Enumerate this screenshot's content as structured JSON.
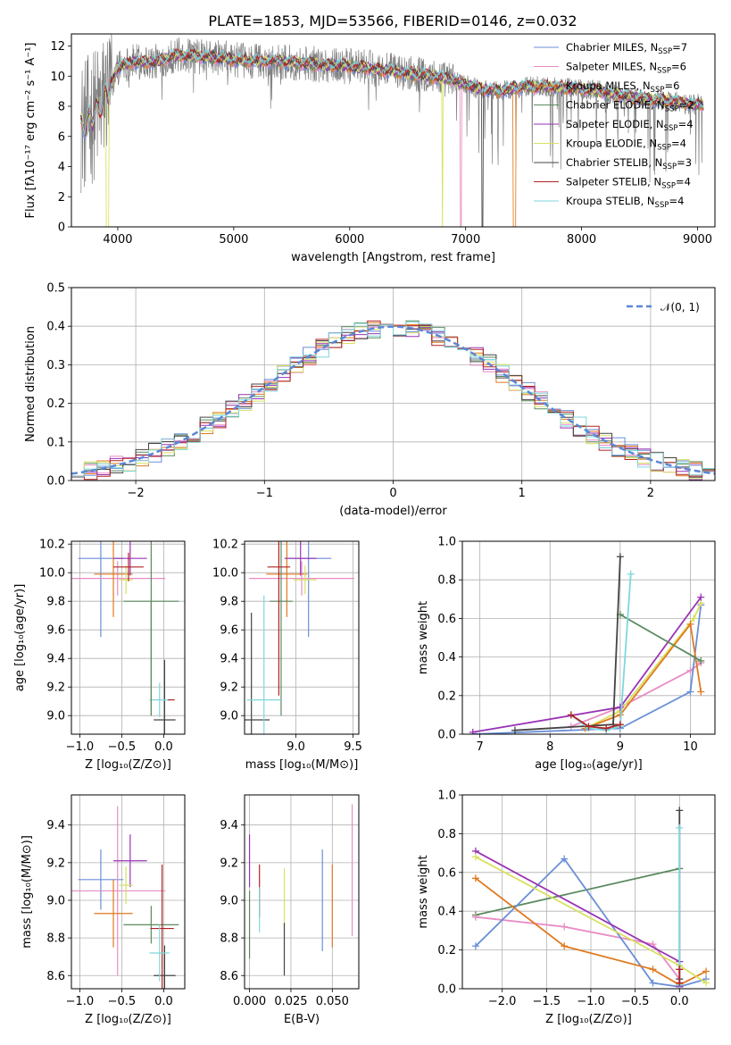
{
  "figure_title": "PLATE=1853, MJD=53566, FIBERID=0146, z=0.032",
  "colors": {
    "chabrier_miles": "#6a8fd8",
    "salpeter_miles": "#e88cc4",
    "kroupa_miles": "#e07a1f",
    "chabrier_elodie": "#5a8a5e",
    "salpeter_elodie": "#9933b5",
    "kroupa_elodie": "#d8e060",
    "chabrier_stelib": "#444444",
    "salpeter_stelib": "#b22222",
    "kroupa_stelib": "#7fd6dc",
    "data": "#7f7f7f",
    "grid": "#b0b0b0",
    "normal": "#5b87d6"
  },
  "chart_data": [
    {
      "id": "spectrum",
      "type": "line",
      "title": "PLATE=1853, MJD=53566, FIBERID=0146, z=0.032",
      "xlabel": "wavelength [Angstrom, rest frame]",
      "ylabel": "Flux [fλ10⁻¹⁷ erg cm⁻² s⁻¹ A⁻¹]",
      "xlim": [
        3600,
        9150
      ],
      "ylim": [
        0,
        12.8
      ],
      "xticks": [
        "4000",
        "5000",
        "6000",
        "7000",
        "8000",
        "9000"
      ],
      "yticks": [
        "0",
        "2",
        "4",
        "6",
        "8",
        "10",
        "12"
      ],
      "grid": false,
      "legend_position": "top-right",
      "legend": [
        {
          "label": "Chabrier MILES, N",
          "sub": "SSP",
          "tail": "=7",
          "color": "#6a8fd8"
        },
        {
          "label": "Salpeter MILES, N",
          "sub": "SSP",
          "tail": "=6",
          "color": "#e88cc4"
        },
        {
          "label": "Kroupa MILES, N",
          "sub": "SSP",
          "tail": "=6",
          "color": "#e07a1f"
        },
        {
          "label": "Chabrier ELODIE, N",
          "sub": "SSP",
          "tail": "=2",
          "color": "#5a8a5e"
        },
        {
          "label": "Salpeter ELODIE, N",
          "sub": "SSP",
          "tail": "=4",
          "color": "#9933b5"
        },
        {
          "label": "Kroupa ELODIE, N",
          "sub": "SSP",
          "tail": "=4",
          "color": "#d8e060"
        },
        {
          "label": "Chabrier STELIB, N",
          "sub": "SSP",
          "tail": "=3",
          "color": "#444444"
        },
        {
          "label": "Salpeter STELIB, N",
          "sub": "SSP",
          "tail": "=4",
          "color": "#b22222"
        },
        {
          "label": "Kroupa STELIB, N",
          "sub": "SSP",
          "tail": "=4",
          "color": "#7fd6dc"
        }
      ],
      "model_continuum": {
        "x": [
          3680,
          3750,
          3850,
          3950,
          4000,
          4100,
          4200,
          4300,
          4400,
          4500,
          4700,
          4900,
          5100,
          5300,
          5500,
          5700,
          5900,
          6100,
          6300,
          6500,
          6700,
          6900,
          7100,
          7300,
          7500,
          7700,
          7900,
          8100,
          8300,
          8500,
          8700,
          8900,
          9050
        ],
        "y": [
          6.6,
          7.0,
          8.0,
          9.5,
          10.6,
          10.9,
          11.0,
          10.9,
          11.1,
          11.4,
          11.3,
          11.2,
          11.0,
          11.0,
          10.9,
          10.8,
          10.7,
          10.6,
          10.4,
          10.2,
          10.0,
          9.7,
          9.2,
          9.0,
          9.3,
          9.3,
          9.2,
          9.1,
          8.8,
          8.5,
          8.4,
          8.2,
          8.1
        ]
      },
      "dropouts": [
        {
          "series": "kroupa_elodie",
          "x": [
            3900,
            3920
          ]
        },
        {
          "series": "kroupa_elodie",
          "x": [
            6795,
            6805
          ]
        },
        {
          "series": "salpeter_miles",
          "x": [
            6955,
            6965
          ]
        },
        {
          "series": "chabrier_stelib",
          "x": [
            7140,
            7150
          ]
        },
        {
          "series": "kroupa_miles",
          "x": [
            7410,
            7430
          ]
        }
      ]
    },
    {
      "id": "residuals",
      "type": "histogram",
      "xlabel": "(data-model)/error",
      "ylabel": "Normed distribution",
      "xlim": [
        -2.5,
        2.5
      ],
      "ylim": [
        0,
        0.5
      ],
      "xticks": [
        "−2",
        "−1",
        "0",
        "1",
        "2"
      ],
      "yticks": [
        "0.0",
        "0.1",
        "0.2",
        "0.3",
        "0.4",
        "0.5"
      ],
      "grid": true,
      "legend_position": "top-right",
      "legend": [
        {
          "label": "𝒩(0, 1)",
          "style": "dashed",
          "color": "#5b87d6"
        }
      ],
      "bin_width": 0.1,
      "bin_start": -2.5
    },
    {
      "id": "age_vs_Z",
      "type": "errorbar",
      "xlabel": "Z [log₁₀(Z/Z⊙)]",
      "ylabel": "age  [log₁₀(age/yr)]",
      "xlim": [
        -1.1,
        0.25
      ],
      "ylim": [
        8.87,
        10.22
      ],
      "xticks": [
        "−1.0",
        "−0.5",
        "0.0"
      ],
      "xtick_values": [
        -1.0,
        -0.5,
        0.0
      ],
      "yticks": [
        "9.0",
        "9.2",
        "9.4",
        "9.6",
        "9.8",
        "10.0",
        "10.2"
      ],
      "ytick_values": [
        9.0,
        9.2,
        9.4,
        9.6,
        9.8,
        10.0,
        10.2
      ],
      "grid": true,
      "points": [
        {
          "series": "chabrier_miles",
          "x": -0.75,
          "y": 10.1,
          "xerr": 0.27,
          "yerr": 0.55
        },
        {
          "series": "salpeter_miles",
          "x": -0.55,
          "y": 9.96,
          "xerr": 0.57,
          "yerr": 0.12
        },
        {
          "series": "kroupa_miles",
          "x": -0.6,
          "y": 9.99,
          "xerr": 0.23,
          "yerr": 0.3
        },
        {
          "series": "chabrier_elodie",
          "x": -0.15,
          "y": 9.8,
          "xerr": 0.33,
          "yerr": 0.8
        },
        {
          "series": "salpeter_elodie",
          "x": -0.4,
          "y": 10.1,
          "xerr": 0.2,
          "yerr": 0.12
        },
        {
          "series": "kroupa_elodie",
          "x": -0.45,
          "y": 9.95,
          "xerr": 0.08,
          "yerr": 0.1
        },
        {
          "series": "chabrier_stelib",
          "x": 0.01,
          "y": 8.97,
          "xerr": 0.13,
          "yerr": 0.42
        },
        {
          "series": "salpeter_stelib",
          "x": -0.42,
          "y": 10.04,
          "xerr": 0.18,
          "yerr": 0.1
        },
        {
          "series": "kroupa_stelib",
          "x": -0.05,
          "y": 9.11,
          "xerr": 0.12,
          "yerr": 0.12
        }
      ],
      "extra_segments": [
        {
          "series": "salpeter_stelib",
          "x": [
            0.05,
            0.13
          ],
          "y": [
            9.11,
            9.11
          ]
        },
        {
          "series": "chabrier_elodie",
          "x": [
            -0.15,
            -0.15
          ],
          "y": [
            9.0,
            9.8
          ]
        }
      ]
    },
    {
      "id": "age_vs_mass",
      "type": "errorbar",
      "xlabel": "mass [log₁₀(M/M⊙)]",
      "ylabel": "",
      "xlim": [
        8.55,
        9.55
      ],
      "ylim": [
        8.87,
        10.22
      ],
      "xticks": [
        "8.5",
        "9.0",
        "9.5"
      ],
      "xtick_values": [
        8.5,
        9.0,
        9.5
      ],
      "yticks": [
        "9.0",
        "9.2",
        "9.4",
        "9.6",
        "9.8",
        "10.0",
        "10.2"
      ],
      "ytick_values": [
        9.0,
        9.2,
        9.4,
        9.6,
        9.8,
        10.0,
        10.2
      ],
      "grid": true,
      "points": [
        {
          "series": "chabrier_miles",
          "x": 9.11,
          "y": 10.1,
          "xerr": 0.2,
          "yerr": 0.55
        },
        {
          "series": "salpeter_miles",
          "x": 9.05,
          "y": 9.96,
          "xerr": 0.46,
          "yerr": 0.12
        },
        {
          "series": "kroupa_miles",
          "x": 8.92,
          "y": 9.99,
          "xerr": 0.18,
          "yerr": 0.3
        },
        {
          "series": "chabrier_elodie",
          "x": 8.87,
          "y": 9.8,
          "xerr": 0.1,
          "yerr": 0.8
        },
        {
          "series": "salpeter_elodie",
          "x": 9.04,
          "y": 10.1,
          "xerr": 0.14,
          "yerr": 0.12
        },
        {
          "series": "kroupa_elodie",
          "x": 9.08,
          "y": 9.95,
          "xerr": 0.1,
          "yerr": 0.1
        },
        {
          "series": "chabrier_stelib",
          "x": 8.61,
          "y": 8.97,
          "xerr": 0.16,
          "yerr": 0.75
        },
        {
          "series": "salpeter_stelib",
          "x": 8.85,
          "y": 10.04,
          "xerr": 0.1,
          "yerr": 0.9
        },
        {
          "series": "kroupa_stelib",
          "x": 8.72,
          "y": 9.11,
          "xerr": 0.15,
          "yerr": 0.73
        }
      ]
    },
    {
      "id": "weight_vs_age",
      "type": "line",
      "xlabel": "age  [log₁₀(age/yr)]",
      "ylabel": "mass weight",
      "xlim": [
        6.75,
        10.35
      ],
      "ylim": [
        0,
        1.0
      ],
      "xticks": [
        "7",
        "8",
        "9",
        "10"
      ],
      "xtick_values": [
        7,
        8,
        9,
        10
      ],
      "yticks": [
        "0.0",
        "0.2",
        "0.4",
        "0.6",
        "0.8",
        "1.0"
      ],
      "ytick_values": [
        0,
        0.2,
        0.4,
        0.6,
        0.8,
        1.0
      ],
      "grid": true,
      "series": [
        {
          "key": "salpeter_miles",
          "x": [
            8.3,
            9.0,
            10.0,
            10.15
          ],
          "y": [
            0.04,
            0.14,
            0.33,
            0.37
          ]
        },
        {
          "key": "chabrier_miles",
          "x": [
            6.9,
            9.0,
            10.0,
            10.15
          ],
          "y": [
            0.0,
            0.03,
            0.22,
            0.67
          ]
        },
        {
          "key": "kroupa_elodie",
          "x": [
            8.5,
            9.0,
            10.05,
            10.15
          ],
          "y": [
            0.03,
            0.12,
            0.6,
            0.68
          ]
        },
        {
          "key": "salpeter_elodie",
          "x": [
            6.9,
            9.0,
            10.15
          ],
          "y": [
            0.01,
            0.14,
            0.71
          ]
        },
        {
          "key": "kroupa_miles",
          "x": [
            8.5,
            9.0,
            10.0,
            10.15
          ],
          "y": [
            0.03,
            0.1,
            0.57,
            0.22
          ]
        },
        {
          "key": "chabrier_elodie",
          "x": [
            9.0,
            10.15
          ],
          "y": [
            0.62,
            0.38
          ]
        },
        {
          "key": "chabrier_stelib",
          "x": [
            7.5,
            8.9,
            9.0
          ],
          "y": [
            0.02,
            0.05,
            0.92
          ]
        },
        {
          "key": "kroupa_stelib",
          "x": [
            8.3,
            8.55,
            8.8,
            9.0,
            9.15
          ],
          "y": [
            0.1,
            0.03,
            0.02,
            0.04,
            0.83
          ]
        },
        {
          "key": "salpeter_stelib",
          "x": [
            8.3,
            8.55,
            8.8,
            9.0
          ],
          "y": [
            0.1,
            0.04,
            0.03,
            0.05
          ]
        }
      ]
    },
    {
      "id": "mass_vs_Z",
      "type": "errorbar",
      "xlabel": "Z [log₁₀(Z/Z⊙)]",
      "ylabel": "mass [log₁₀(M/M⊙)]",
      "xlim": [
        -1.1,
        0.25
      ],
      "ylim": [
        8.53,
        9.56
      ],
      "xticks": [
        "−1.0",
        "−0.5",
        "0.0"
      ],
      "xtick_values": [
        -1.0,
        -0.5,
        0.0
      ],
      "yticks": [
        "8.6",
        "8.8",
        "9.0",
        "9.2",
        "9.4"
      ],
      "ytick_values": [
        8.6,
        8.8,
        9.0,
        9.2,
        9.4
      ],
      "grid": true,
      "points": [
        {
          "series": "chabrier_miles",
          "x": -0.75,
          "y": 9.11,
          "xerr": 0.27,
          "yerr": 0.16
        },
        {
          "series": "salpeter_miles",
          "x": -0.55,
          "y": 9.05,
          "xerr": 0.57,
          "yerr": 0.45
        },
        {
          "series": "kroupa_miles",
          "x": -0.6,
          "y": 8.93,
          "xerr": 0.23,
          "yerr": 0.18
        },
        {
          "series": "chabrier_elodie",
          "x": -0.15,
          "y": 8.87,
          "xerr": 0.33,
          "yerr": 0.1
        },
        {
          "series": "salpeter_elodie",
          "x": -0.4,
          "y": 9.21,
          "xerr": 0.2,
          "yerr": 0.14
        },
        {
          "series": "kroupa_elodie",
          "x": -0.45,
          "y": 9.08,
          "xerr": 0.08,
          "yerr": 0.1
        },
        {
          "series": "chabrier_stelib",
          "x": 0.01,
          "y": 8.6,
          "xerr": 0.13,
          "yerr": 0.16
        },
        {
          "series": "salpeter_stelib",
          "x": -0.02,
          "y": 8.85,
          "xerr": 0.14,
          "yerr": 0.34
        },
        {
          "series": "kroupa_stelib",
          "x": -0.05,
          "y": 8.72,
          "xerr": 0.12,
          "yerr": 0.15
        }
      ]
    },
    {
      "id": "ebv",
      "type": "errorbar",
      "xlabel": "E(B-V)",
      "ylabel": "",
      "xlim": [
        -0.003,
        0.066
      ],
      "ylim": [
        8.53,
        9.56
      ],
      "xticks": [
        "0.000",
        "0.025",
        "0.050"
      ],
      "xtick_values": [
        0.0,
        0.025,
        0.05
      ],
      "yticks": [
        "8.6",
        "8.8",
        "9.0",
        "9.2",
        "9.4"
      ],
      "ytick_values": [
        8.6,
        8.8,
        9.0,
        9.2,
        9.4
      ],
      "grid": true,
      "points": [
        {
          "series": "chabrier_elodie",
          "x": 0.0,
          "y": 8.87,
          "xerr": 0,
          "yerr": 0.18
        },
        {
          "series": "salpeter_elodie",
          "x": 0.0,
          "y": 9.21,
          "xerr": 0,
          "yerr": 0.14
        },
        {
          "series": "salpeter_stelib",
          "x": 0.006,
          "y": 9.05,
          "xerr": 0,
          "yerr": 0.14
        },
        {
          "series": "kroupa_stelib",
          "x": 0.006,
          "y": 8.95,
          "xerr": 0,
          "yerr": 0.12
        },
        {
          "series": "kroupa_elodie",
          "x": 0.021,
          "y": 9.0,
          "xerr": 0,
          "yerr": 0.17
        },
        {
          "series": "chabrier_stelib",
          "x": 0.021,
          "y": 8.74,
          "xerr": 0,
          "yerr": 0.14
        },
        {
          "series": "chabrier_miles",
          "x": 0.044,
          "y": 9.0,
          "xerr": 0,
          "yerr": 0.27
        },
        {
          "series": "kroupa_miles",
          "x": 0.05,
          "y": 8.97,
          "xerr": 0,
          "yerr": 0.22
        },
        {
          "series": "salpeter_miles",
          "x": 0.062,
          "y": 9.16,
          "xerr": 0,
          "yerr": 0.35
        }
      ]
    },
    {
      "id": "weight_vs_Z",
      "type": "line",
      "xlabel": "Z [log₁₀(Z/Z⊙)]",
      "ylabel": "mass weight",
      "xlim": [
        -2.45,
        0.4
      ],
      "ylim": [
        0,
        1.0
      ],
      "xticks": [
        "−2.0",
        "−1.5",
        "−1.0",
        "−0.5",
        "0.0"
      ],
      "xtick_values": [
        -2.0,
        -1.5,
        -1.0,
        -0.5,
        0.0
      ],
      "yticks": [
        "0.0",
        "0.2",
        "0.4",
        "0.6",
        "0.8",
        "1.0"
      ],
      "ytick_values": [
        0,
        0.2,
        0.4,
        0.6,
        0.8,
        1.0
      ],
      "grid": true,
      "series": [
        {
          "key": "chabrier_elodie",
          "x": [
            -2.3,
            0.0
          ],
          "y": [
            0.38,
            0.62
          ]
        },
        {
          "key": "salpeter_miles",
          "x": [
            -2.3,
            -1.3,
            -0.3,
            0.0
          ],
          "y": [
            0.37,
            0.32,
            0.23,
            0.05
          ]
        },
        {
          "key": "chabrier_miles",
          "x": [
            -2.3,
            -1.3,
            -0.3,
            0.0,
            0.3
          ],
          "y": [
            0.22,
            0.67,
            0.03,
            0.01,
            0.05
          ]
        },
        {
          "key": "kroupa_miles",
          "x": [
            -2.3,
            -1.3,
            -0.3,
            0.0,
            0.3
          ],
          "y": [
            0.57,
            0.22,
            0.1,
            0.02,
            0.09
          ]
        },
        {
          "key": "salpeter_elodie",
          "x": [
            -2.3,
            0.0,
            0.0
          ],
          "y": [
            0.71,
            0.14,
            0.01
          ]
        },
        {
          "key": "kroupa_elodie",
          "x": [
            -2.3,
            0.0,
            0.3
          ],
          "y": [
            0.68,
            0.12,
            0.03
          ]
        },
        {
          "key": "chabrier_stelib",
          "x": [
            0.0,
            0.0
          ],
          "y": [
            0.05,
            0.92
          ]
        },
        {
          "key": "kroupa_stelib",
          "x": [
            0.0,
            0.0
          ],
          "y": [
            0.02,
            0.83
          ]
        },
        {
          "key": "salpeter_stelib",
          "x": [
            0.0,
            0.0
          ],
          "y": [
            0.03,
            0.1
          ]
        }
      ]
    }
  ]
}
